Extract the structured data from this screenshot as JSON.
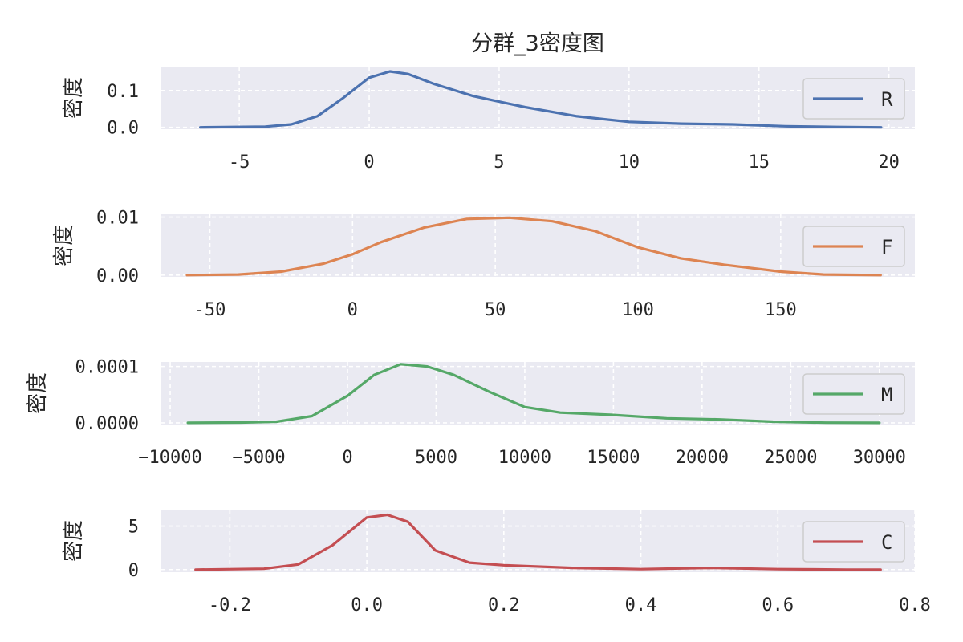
{
  "figure_title": "分群_3密度图",
  "chart_data": [
    {
      "type": "line",
      "series": [
        {
          "name": "R",
          "color": "#4c72b0"
        }
      ],
      "ylabel": "密度",
      "xlim": [
        -8,
        21
      ],
      "ylim": [
        -0.005,
        0.165
      ],
      "xticks": [
        -5,
        0,
        5,
        10,
        15,
        20
      ],
      "xticklabels": [
        "-5",
        "0",
        "5",
        "10",
        "15",
        "20"
      ],
      "yticks": [
        0.0,
        0.1
      ],
      "yticklabels": [
        "0.0",
        "0.1"
      ],
      "legend": "right",
      "grid": true,
      "x": [
        -6.5,
        -4,
        -3,
        -2,
        -1,
        0,
        0.8,
        1.5,
        2.5,
        4,
        6,
        8,
        10,
        12,
        14,
        16,
        18,
        19.7
      ],
      "y": [
        0.0,
        0.002,
        0.008,
        0.03,
        0.08,
        0.135,
        0.152,
        0.145,
        0.118,
        0.085,
        0.055,
        0.03,
        0.015,
        0.01,
        0.008,
        0.003,
        0.001,
        0.0
      ]
    },
    {
      "type": "line",
      "series": [
        {
          "name": "F",
          "color": "#dd8452"
        }
      ],
      "ylabel": "密度",
      "xlim": [
        -67,
        197
      ],
      "ylim": [
        -0.0003,
        0.0105
      ],
      "xticks": [
        -50,
        0,
        50,
        100,
        150
      ],
      "xticklabels": [
        "-50",
        "0",
        "50",
        "100",
        "150"
      ],
      "yticks": [
        0.0,
        0.01
      ],
      "yticklabels": [
        "0.00",
        "0.01"
      ],
      "legend": "right",
      "grid": true,
      "x": [
        -58,
        -40,
        -25,
        -10,
        0,
        10,
        25,
        40,
        55,
        70,
        85,
        100,
        115,
        130,
        150,
        165,
        185
      ],
      "y": [
        0.0,
        0.0001,
        0.0006,
        0.002,
        0.0036,
        0.0057,
        0.0082,
        0.0097,
        0.0099,
        0.0093,
        0.0076,
        0.0048,
        0.0029,
        0.0018,
        0.0006,
        0.0001,
        0.0
      ]
    },
    {
      "type": "line",
      "series": [
        {
          "name": "M",
          "color": "#55a868"
        }
      ],
      "ylabel": "密度",
      "xlim": [
        -10500,
        32000
      ],
      "ylim": [
        -3e-06,
        0.000108
      ],
      "xticks": [
        -10000,
        -5000,
        0,
        5000,
        10000,
        15000,
        20000,
        25000,
        30000
      ],
      "xticklabels": [
        "−10000",
        "−5000",
        "0",
        "5000",
        "10000",
        "15000",
        "20000",
        "25000",
        "30000"
      ],
      "yticks": [
        0.0,
        0.0001
      ],
      "yticklabels": [
        "0.0000",
        "0.0001"
      ],
      "legend": "right",
      "grid": true,
      "x": [
        -9000,
        -6000,
        -4000,
        -2000,
        0,
        1500,
        3000,
        4500,
        6000,
        8000,
        10000,
        12000,
        15000,
        18000,
        21000,
        24000,
        27000,
        30000
      ],
      "y": [
        0.0,
        5e-07,
        2e-06,
        1.2e-05,
        4.8e-05,
        8.5e-05,
        0.000104,
        0.0001,
        8.5e-05,
        5.5e-05,
        2.8e-05,
        1.8e-05,
        1.4e-05,
        8e-06,
        6e-06,
        2e-06,
        3e-07,
        0.0
      ]
    },
    {
      "type": "line",
      "series": [
        {
          "name": "C",
          "color": "#c44e52"
        }
      ],
      "ylabel": "密度",
      "xlim": [
        -0.3,
        0.8
      ],
      "ylim": [
        -0.3,
        6.9
      ],
      "xticks": [
        -0.2,
        0.0,
        0.2,
        0.4,
        0.6,
        0.8
      ],
      "xticklabels": [
        "-0.2",
        "0.0",
        "0.2",
        "0.4",
        "0.6",
        "0.8"
      ],
      "yticks": [
        0,
        5
      ],
      "yticklabels": [
        "0",
        "5"
      ],
      "legend": "right",
      "grid": true,
      "x": [
        -0.25,
        -0.15,
        -0.1,
        -0.05,
        0.0,
        0.03,
        0.06,
        0.1,
        0.15,
        0.2,
        0.3,
        0.4,
        0.5,
        0.6,
        0.7,
        0.75
      ],
      "y": [
        0.0,
        0.1,
        0.6,
        2.8,
        6.0,
        6.3,
        5.5,
        2.2,
        0.8,
        0.5,
        0.2,
        0.05,
        0.2,
        0.05,
        0.0,
        0.0
      ]
    }
  ]
}
